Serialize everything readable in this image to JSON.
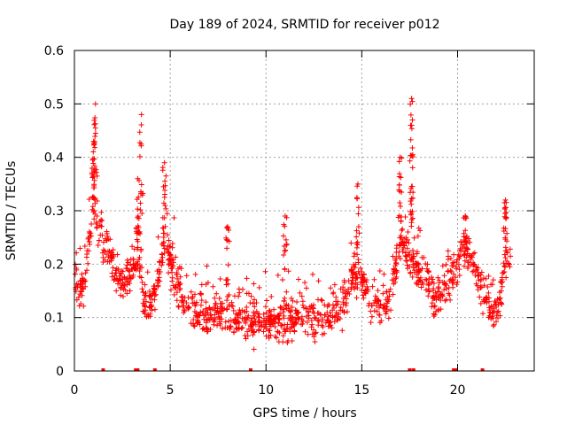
{
  "chart_data": {
    "type": "scatter",
    "title": "Day 189 of 2024, SRMTID for receiver p012",
    "xlabel": "GPS time / hours",
    "ylabel": "SRMTID / TECUs",
    "xlim": [
      0,
      24
    ],
    "ylim": [
      0,
      0.6
    ],
    "x_ticks": [
      0,
      5,
      10,
      15,
      20
    ],
    "x_tick_labels": [
      "0",
      "5",
      "10",
      "15",
      "20"
    ],
    "y_ticks": [
      0,
      0.1,
      0.2,
      0.3,
      0.4,
      0.5,
      0.6
    ],
    "y_tick_labels": [
      "0",
      "0.1",
      "0.2",
      "0.3",
      "0.4",
      "0.5",
      "0.6"
    ],
    "grid": true,
    "marker": "+",
    "color": "#ff0000",
    "trend": [
      [
        0.0,
        0.17
      ],
      [
        0.5,
        0.15
      ],
      [
        0.8,
        0.25
      ],
      [
        1.0,
        0.32
      ],
      [
        1.2,
        0.27
      ],
      [
        1.6,
        0.24
      ],
      [
        2.0,
        0.2
      ],
      [
        2.5,
        0.16
      ],
      [
        3.0,
        0.18
      ],
      [
        3.3,
        0.22
      ],
      [
        3.6,
        0.14
      ],
      [
        4.0,
        0.12
      ],
      [
        4.3,
        0.16
      ],
      [
        4.7,
        0.24
      ],
      [
        5.0,
        0.2
      ],
      [
        5.5,
        0.15
      ],
      [
        6.0,
        0.12
      ],
      [
        7.0,
        0.1
      ],
      [
        8.0,
        0.11
      ],
      [
        9.0,
        0.1
      ],
      [
        10.0,
        0.09
      ],
      [
        11.0,
        0.09
      ],
      [
        12.0,
        0.11
      ],
      [
        13.0,
        0.09
      ],
      [
        14.0,
        0.13
      ],
      [
        14.5,
        0.17
      ],
      [
        15.0,
        0.18
      ],
      [
        15.5,
        0.13
      ],
      [
        16.0,
        0.12
      ],
      [
        16.5,
        0.14
      ],
      [
        17.0,
        0.25
      ],
      [
        17.3,
        0.22
      ],
      [
        17.7,
        0.2
      ],
      [
        18.3,
        0.18
      ],
      [
        18.8,
        0.13
      ],
      [
        19.3,
        0.15
      ],
      [
        19.8,
        0.18
      ],
      [
        20.3,
        0.23
      ],
      [
        20.8,
        0.2
      ],
      [
        21.3,
        0.15
      ],
      [
        21.8,
        0.11
      ],
      [
        22.2,
        0.12
      ],
      [
        22.5,
        0.22
      ],
      [
        22.8,
        0.21
      ]
    ],
    "spikes": [
      {
        "x": 1.1,
        "y": 0.5
      },
      {
        "x": 1.0,
        "y": 0.43
      },
      {
        "x": 3.5,
        "y": 0.48
      },
      {
        "x": 4.7,
        "y": 0.39
      },
      {
        "x": 3.3,
        "y": 0.36
      },
      {
        "x": 8.0,
        "y": 0.27
      },
      {
        "x": 11.0,
        "y": 0.29
      },
      {
        "x": 14.8,
        "y": 0.35
      },
      {
        "x": 17.0,
        "y": 0.4
      },
      {
        "x": 17.6,
        "y": 0.51
      },
      {
        "x": 17.6,
        "y": 0.46
      },
      {
        "x": 20.4,
        "y": 0.29
      },
      {
        "x": 22.5,
        "y": 0.32
      }
    ],
    "zero_points_x": [
      1.5,
      3.2,
      3.3,
      4.2,
      9.2,
      17.5,
      17.7,
      19.8,
      19.9,
      21.3
    ],
    "point_count": 1400,
    "noise_sd": 0.035
  }
}
